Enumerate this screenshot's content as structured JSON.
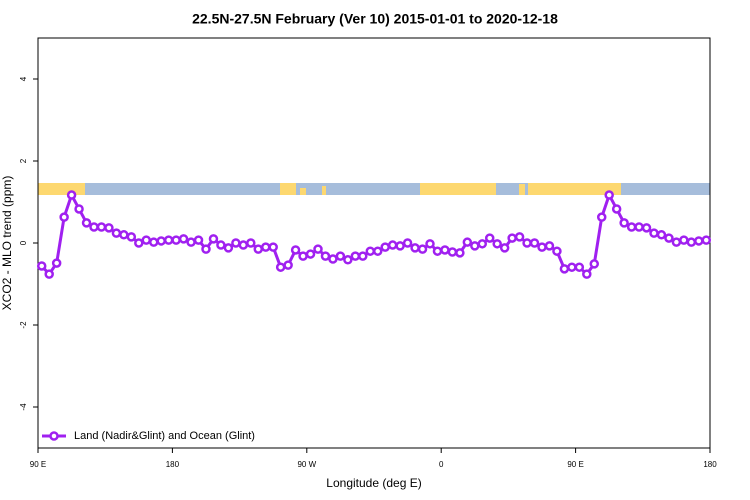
{
  "chart_data": {
    "type": "line",
    "title": "22.5N-27.5N February (Ver 10)   2015-01-01 to 2020-12-18",
    "x_label": "Longitude (deg E)",
    "y_label": "XCO2 - MLO trend (ppm)",
    "xlim": [
      90,
      540
    ],
    "ylim": [
      -5,
      5
    ],
    "xticks": [
      {
        "value": 90,
        "label": "90 E"
      },
      180,
      {
        "value": 270,
        "label": "90 W"
      },
      {
        "value": 360,
        "label": "0"
      },
      {
        "value": 450,
        "label": "90 E"
      },
      {
        "value": 540,
        "label": "180"
      }
    ],
    "yticks": [
      -4,
      -2,
      0,
      2,
      4
    ],
    "legend": "bottom-left",
    "x": [
      92.5,
      97.5,
      102.5,
      107.5,
      112.5,
      117.5,
      122.5,
      127.5,
      132.5,
      137.5,
      142.5,
      147.5,
      152.5,
      157.5,
      162.5,
      167.5,
      172.5,
      177.5,
      182.5,
      187.5,
      192.5,
      197.5,
      202.5,
      207.5,
      212.5,
      217.5,
      222.5,
      227.5,
      232.5,
      237.5,
      242.5,
      247.5,
      252.5,
      257.5,
      262.5,
      267.5,
      272.5,
      277.5,
      282.5,
      287.5,
      292.5,
      297.5,
      302.5,
      307.5,
      312.5,
      317.5,
      322.5,
      327.5,
      332.5,
      337.5,
      342.5,
      347.5,
      352.5,
      357.5,
      362.5,
      367.5,
      372.5,
      377.5,
      382.5,
      387.5,
      392.5,
      397.5,
      402.5,
      407.5,
      412.5,
      417.5,
      422.5,
      427.5,
      432.5,
      437.5,
      442.5,
      447.5,
      452.5,
      457.5,
      462.5,
      467.5,
      472.5,
      477.5,
      482.5,
      487.5,
      492.5,
      497.5,
      502.5,
      507.5,
      512.5,
      517.5,
      522.5,
      527.5,
      532.5,
      537.5
    ],
    "series": [
      {
        "name": "Land (Nadir&Glint) and Ocean (Glint)",
        "color": "#a020f0",
        "values": [
          -0.56,
          -0.76,
          -0.49,
          0.63,
          1.17,
          0.83,
          0.49,
          0.39,
          0.39,
          0.37,
          0.24,
          0.2,
          0.15,
          0.0,
          0.07,
          0.02,
          0.05,
          0.07,
          0.07,
          0.1,
          0.02,
          0.07,
          -0.15,
          0.1,
          -0.05,
          -0.12,
          0.0,
          -0.05,
          0.0,
          -0.15,
          -0.1,
          -0.1,
          -0.59,
          -0.54,
          -0.17,
          -0.32,
          -0.27,
          -0.15,
          -0.32,
          -0.39,
          -0.32,
          -0.41,
          -0.32,
          -0.32,
          -0.2,
          -0.2,
          -0.1,
          -0.05,
          -0.07,
          0.0,
          -0.12,
          -0.15,
          -0.02,
          -0.2,
          -0.17,
          -0.22,
          -0.24,
          0.02,
          -0.07,
          -0.02,
          0.12,
          -0.02,
          -0.12,
          0.12,
          0.15,
          0.0,
          0.0,
          -0.1,
          -0.07,
          -0.2,
          -0.63,
          -0.59,
          -0.59,
          -0.76,
          -0.51,
          0.63,
          1.17,
          0.83,
          0.49,
          0.39,
          0.39,
          0.37,
          0.24,
          0.2,
          0.12,
          0.02,
          0.07,
          0.02,
          0.05,
          0.07
        ]
      }
    ]
  }
}
